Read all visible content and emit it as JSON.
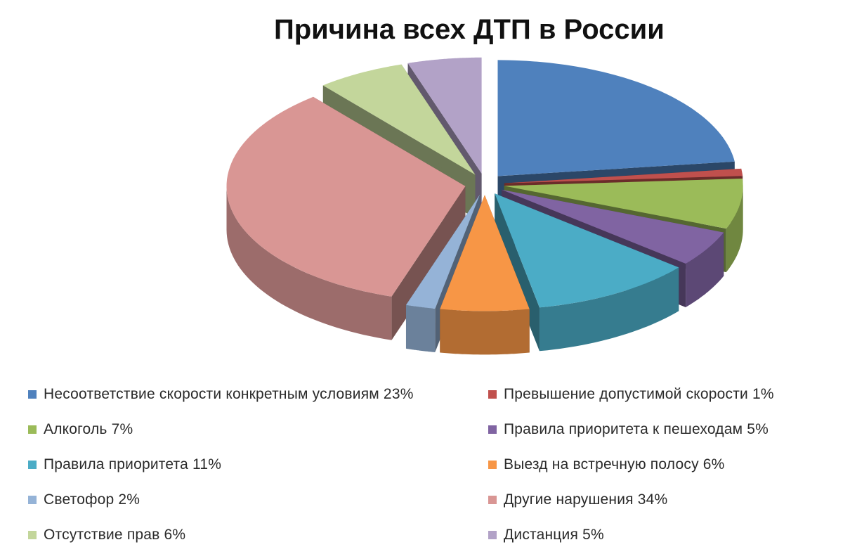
{
  "chart_data": {
    "type": "pie",
    "title": "Причина всех ДТП в России",
    "legend_position": "bottom",
    "slices": [
      {
        "label": "Несоответствие скорости конкретным условиям 23%",
        "value": 23,
        "color": "#4F81BD"
      },
      {
        "label": "Превышение допустимой скорости  1%",
        "value": 1,
        "color": "#C0504D"
      },
      {
        "label": "Алкоголь 7%",
        "value": 7,
        "color": "#9BBB59"
      },
      {
        "label": "Правила приоритета к пешеходам 5%",
        "value": 5,
        "color": "#8064A2"
      },
      {
        "label": "Правила приоритета 11%",
        "value": 11,
        "color": "#4BACC6"
      },
      {
        "label": "Выезд на встречную полосу 6%",
        "value": 6,
        "color": "#F79646"
      },
      {
        "label": "Светофор 2%",
        "value": 2,
        "color": "#95B3D7"
      },
      {
        "label": "Другие нарушения 34%",
        "value": 34,
        "color": "#D99694"
      },
      {
        "label": "Отсутствие прав 6%",
        "value": 6,
        "color": "#C3D69B"
      },
      {
        "label": "Дистанция 5%",
        "value": 5,
        "color": "#B2A2C7"
      }
    ]
  }
}
